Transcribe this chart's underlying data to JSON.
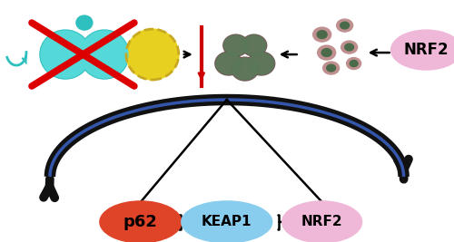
{
  "bg_color": "#ffffff",
  "teal_color": "#2ebfbf",
  "yellow_color": "#e8d020",
  "yellow_border": "#c8a820",
  "red_x_color": "#dd0000",
  "red_bar_color": "#cc0000",
  "proteasome_dark": "#6b4a4a",
  "proteasome_green": "#5a7a5a",
  "small_dot_green": "#4a6a4a",
  "small_dot_pink": "#c09090",
  "nrf2_top_color": "#f0b8d8",
  "nrf2_top_text": "NRF2",
  "arc_outer_color": "#111111",
  "arc_inner_color": "#3355aa",
  "p62_color": "#e04428",
  "p62_text": "p62",
  "keap1_color": "#88ccee",
  "keap1_text": "KEAP1",
  "nrf2_bot_color": "#f0b8d8",
  "nrf2_bot_text": "NRF2",
  "fig_width": 5.0,
  "fig_height": 2.67,
  "dpi": 100
}
